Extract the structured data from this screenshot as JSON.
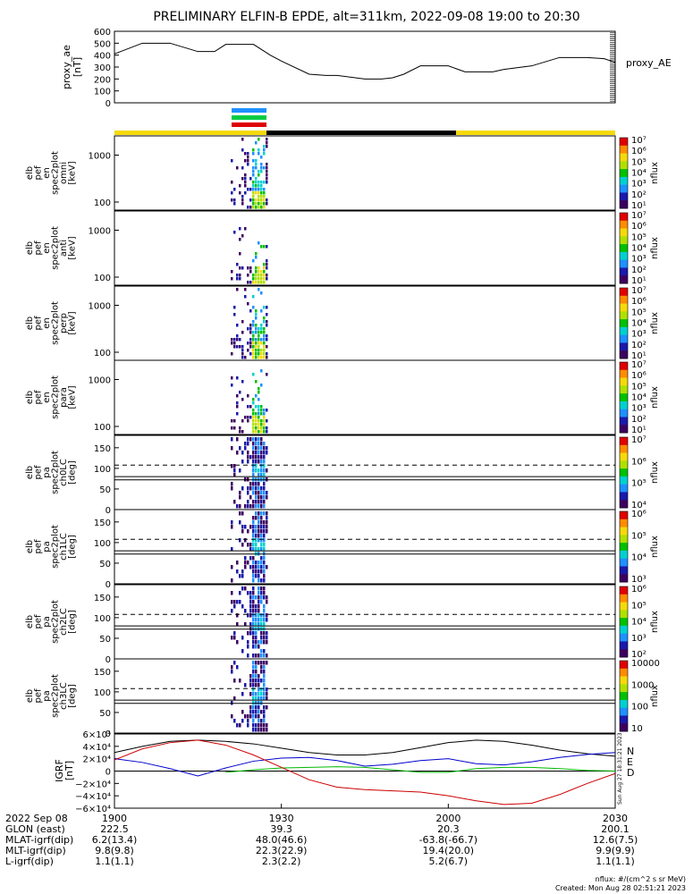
{
  "title": "PRELIMINARY ELFIN-B EPDE, alt=311km, 2022-09-08 19:00 to 20:30",
  "colors": {
    "zoom_bar": "#f5d90a",
    "ae_line": "#000000",
    "igrf_x": "#000000",
    "igrf_y": "#0000cc",
    "igrf_z": "#00bb00",
    "igrf_f": "#cc0000",
    "sci_zone_bar1": "#1e90ff",
    "sci_zone_bar2": "#00cc44",
    "sci_zone_bar3": "#dd0000"
  },
  "colorbar_cmap": [
    "#3d0060",
    "#1a1aa8",
    "#1e90ff",
    "#00d0d0",
    "#00c000",
    "#b0e000",
    "#f5d90a",
    "#ff8c00",
    "#e00000"
  ],
  "chart_data": [
    {
      "type": "line",
      "panel": "proxy_ae",
      "ylabel_lines": [
        "proxy_ae",
        "[nT]"
      ],
      "right_label": "proxy_AE",
      "ylim": [
        0,
        600
      ],
      "yticks": [
        "0",
        "100",
        "200",
        "300",
        "400",
        "500",
        "600"
      ],
      "x_minutes": [
        0,
        5,
        10,
        15,
        18,
        20,
        25,
        28,
        30,
        35,
        38,
        40,
        45,
        48,
        50,
        52,
        55,
        57,
        60,
        63,
        65,
        68,
        70,
        75,
        80,
        85,
        88,
        90
      ],
      "values": [
        410,
        500,
        500,
        430,
        430,
        490,
        490,
        400,
        350,
        240,
        230,
        230,
        200,
        200,
        210,
        240,
        310,
        310,
        310,
        260,
        260,
        260,
        280,
        310,
        380,
        380,
        370,
        340
      ]
    },
    {
      "type": "heatmap",
      "panel": "omni",
      "ylabel_lines": [
        "elb",
        "pef",
        "en",
        "spec2plot",
        "omni",
        "[keV]"
      ],
      "yticks": [
        "100",
        "1000"
      ],
      "cbar_label": "nflux",
      "cbar_ticks": [
        "10⁷",
        "10⁶",
        "10⁵",
        "10⁴",
        "10³",
        "10²",
        "10¹"
      ]
    },
    {
      "type": "heatmap",
      "panel": "anti",
      "ylabel_lines": [
        "elb",
        "pef",
        "en",
        "spec2plot",
        "anti",
        "[keV]"
      ],
      "yticks": [
        "100",
        "1000"
      ],
      "cbar_label": "nflux",
      "cbar_ticks": [
        "10⁷",
        "10⁶",
        "10⁵",
        "10⁴",
        "10³",
        "10²",
        "10¹"
      ]
    },
    {
      "type": "heatmap",
      "panel": "perp",
      "ylabel_lines": [
        "elb",
        "pef",
        "en",
        "spec2plot",
        "perp",
        "[keV]"
      ],
      "yticks": [
        "100",
        "1000"
      ],
      "cbar_label": "nflux",
      "cbar_ticks": [
        "10⁷",
        "10⁶",
        "10⁵",
        "10⁴",
        "10³",
        "10²",
        "10¹"
      ]
    },
    {
      "type": "heatmap",
      "panel": "para",
      "ylabel_lines": [
        "elb",
        "pef",
        "en",
        "spec2plot",
        "para",
        "[keV]"
      ],
      "yticks": [
        "100",
        "1000"
      ],
      "cbar_label": "nflux",
      "cbar_ticks": [
        "10⁷",
        "10⁶",
        "10⁵",
        "10⁴",
        "10³",
        "10²",
        "10¹"
      ]
    },
    {
      "type": "heatmap",
      "panel": "ch0LC",
      "ylabel_lines": [
        "elb",
        "pef",
        "pa",
        "spec2plot",
        "ch0LC",
        "[deg]"
      ],
      "yticks": [
        "0",
        "50",
        "100",
        "150"
      ],
      "ylim": [
        0,
        180
      ],
      "lc_lines": [
        72,
        80
      ],
      "lc_dashed": [
        108
      ],
      "cbar_label": "nflux",
      "cbar_ticks": [
        "10⁷",
        "10⁶",
        "10⁵",
        "10⁴"
      ]
    },
    {
      "type": "heatmap",
      "panel": "ch1LC",
      "ylabel_lines": [
        "elb",
        "pef",
        "pa",
        "spec2plot",
        "ch1LC",
        "[deg]"
      ],
      "yticks": [
        "0",
        "50",
        "100",
        "150"
      ],
      "ylim": [
        0,
        180
      ],
      "lc_lines": [
        72,
        80
      ],
      "lc_dashed": [
        108
      ],
      "cbar_label": "nflux",
      "cbar_ticks": [
        "10⁶",
        "10⁵",
        "10⁴",
        "10³"
      ]
    },
    {
      "type": "heatmap",
      "panel": "ch2LC",
      "ylabel_lines": [
        "elb",
        "pef",
        "pa",
        "spec2plot",
        "ch2LC",
        "[deg]"
      ],
      "yticks": [
        "0",
        "50",
        "100",
        "150"
      ],
      "ylim": [
        0,
        180
      ],
      "lc_lines": [
        72,
        80
      ],
      "lc_dashed": [
        108
      ],
      "cbar_label": "nflux",
      "cbar_ticks": [
        "10⁶",
        "10⁵",
        "10⁴",
        "10³",
        "10²"
      ]
    },
    {
      "type": "heatmap",
      "panel": "ch3LC",
      "ylabel_lines": [
        "elb",
        "pef",
        "pa",
        "spec2plot",
        "ch3LC",
        "[deg]"
      ],
      "yticks": [
        "0",
        "50",
        "100",
        "150"
      ],
      "ylim": [
        0,
        180
      ],
      "lc_lines": [
        72,
        80
      ],
      "lc_dashed": [
        108
      ],
      "cbar_label": "nflux",
      "cbar_ticks": [
        "10000",
        "1000",
        "100",
        "10"
      ]
    },
    {
      "type": "line",
      "panel": "igrf",
      "ylabel_lines": [
        "IGRF",
        "[nT]"
      ],
      "ylim": [
        -60000,
        60000
      ],
      "yticks": [
        "6×10⁴",
        "4×10⁴",
        "2×10⁴",
        "0",
        "−2×10⁴",
        "−4×10⁴",
        "−6×10⁴"
      ],
      "legend": [
        "N",
        "E",
        "D"
      ],
      "stamp": "Sun Aug 27 18:31:21 2023",
      "x_minutes": [
        0,
        5,
        10,
        15,
        20,
        25,
        30,
        35,
        40,
        45,
        50,
        55,
        60,
        65,
        70,
        75,
        80,
        85,
        90
      ],
      "series": [
        {
          "values": [
            30000,
            40000,
            48000,
            50000,
            48000,
            44000,
            37000,
            30000,
            26000,
            26000,
            30000,
            38000,
            46000,
            50000,
            48000,
            42000,
            34000,
            28000,
            24000
          ]
        },
        {
          "values": [
            20000,
            14000,
            4000,
            -8000,
            5000,
            16000,
            21000,
            22000,
            17000,
            8000,
            11000,
            17000,
            20000,
            12000,
            10000,
            15000,
            22000,
            27000,
            30000
          ]
        },
        {
          "values": [
            null,
            null,
            null,
            null,
            -2000,
            2000,
            5000,
            6000,
            7000,
            6000,
            2000,
            -2000,
            -2000,
            4000,
            6000,
            6000,
            4000,
            1000,
            0
          ]
        },
        {
          "values": [
            18000,
            36000,
            46000,
            50000,
            42000,
            26000,
            6000,
            -14000,
            -26000,
            -30000,
            -32000,
            -34000,
            -40000,
            -48000,
            -54000,
            -52000,
            -38000,
            -20000,
            -4000
          ]
        }
      ]
    }
  ],
  "time_axis": {
    "ticks": [
      "1900",
      "1930",
      "2000",
      "2030"
    ],
    "labels_row_left": "2022 Sep 08"
  },
  "ephemeris": {
    "rows": [
      {
        "label": "GLON (east)",
        "values": [
          "222.5",
          "39.3",
          "20.3",
          "200.1"
        ]
      },
      {
        "label": "MLAT-igrf(dip)",
        "values": [
          "6.2(13.4)",
          "48.0(46.6)",
          "-63.8(-66.7)",
          "12.6(7.5)"
        ]
      },
      {
        "label": "MLT-igrf(dip)",
        "values": [
          "9.8(9.8)",
          "22.3(22.9)",
          "19.4(20.0)",
          "9.9(9.9)"
        ]
      },
      {
        "label": "L-igrf(dip)",
        "values": [
          "1.1(1.1)",
          "2.3(2.2)",
          "5.2(6.7)",
          "1.1(1.1)"
        ]
      }
    ]
  },
  "footer": {
    "units": "nflux: #/(cm^2 s sr MeV)",
    "created": "Created: Mon Aug 28 02:51:21 2023"
  }
}
